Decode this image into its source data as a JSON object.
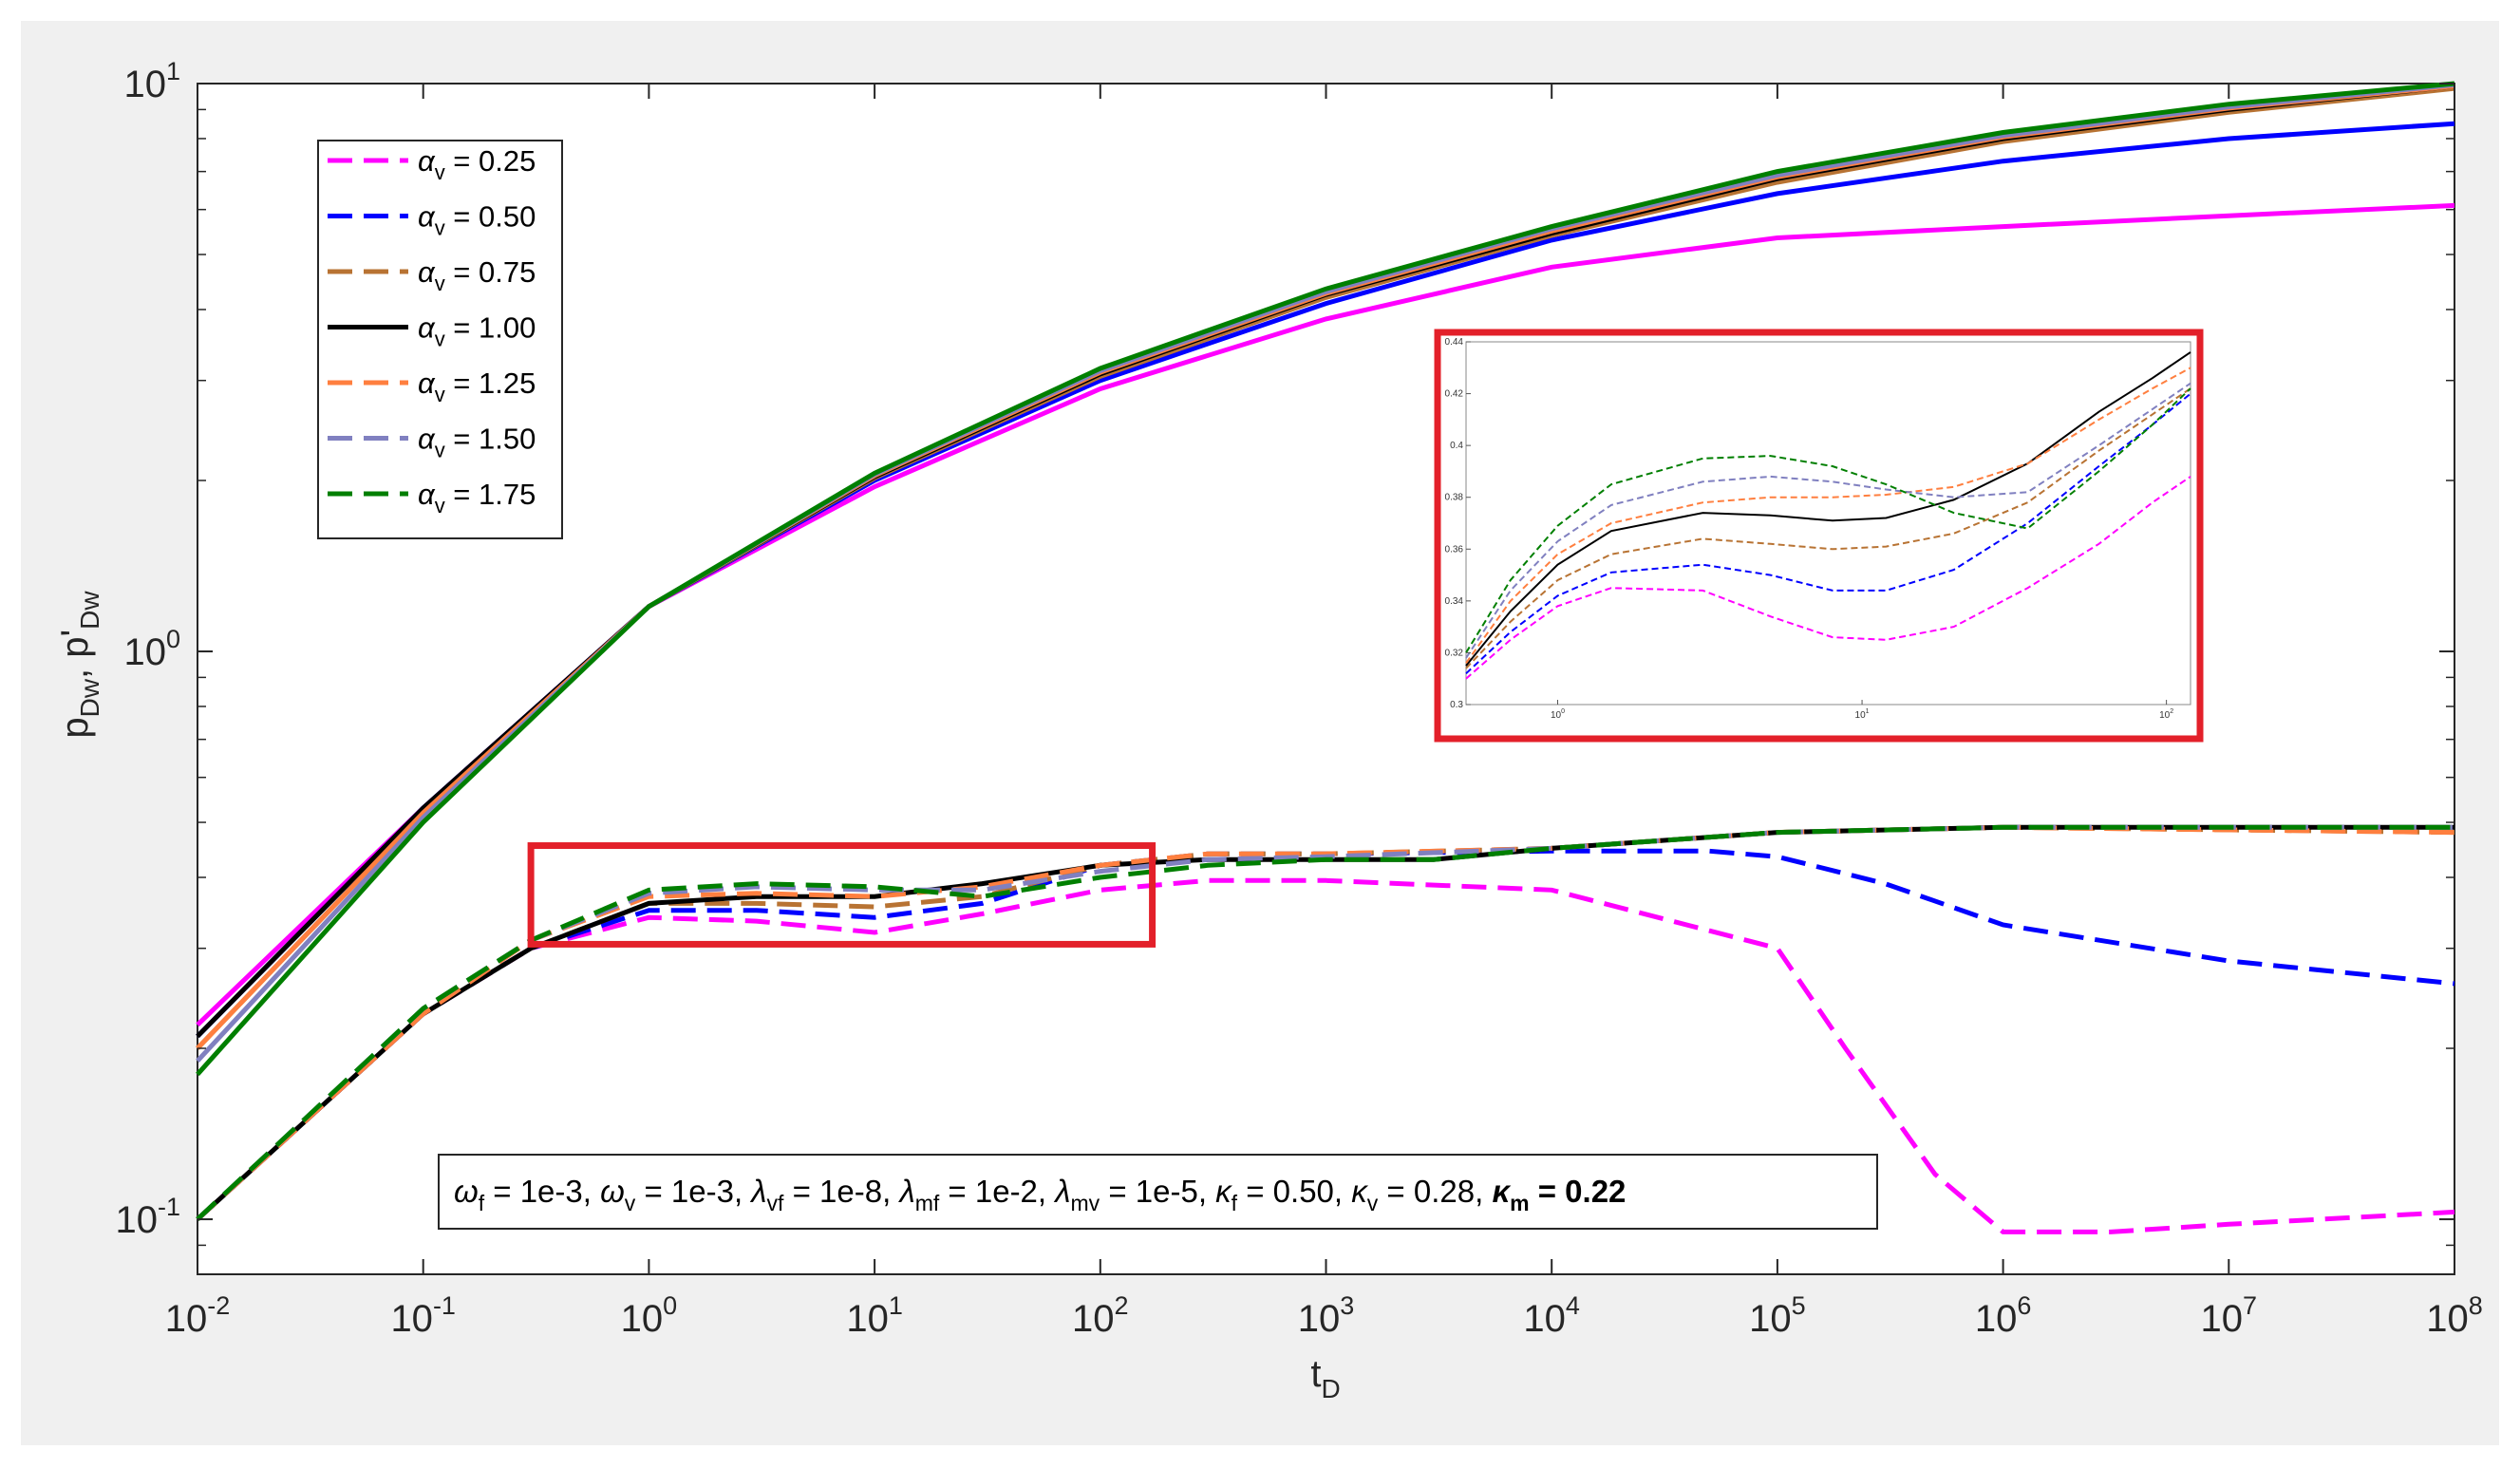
{
  "chart_data": [
    {
      "type": "line",
      "title": "",
      "x_scale": "log",
      "y_scale": "log",
      "xlim": [
        0.01,
        100000000
      ],
      "ylim": [
        0.08,
        10
      ],
      "xlabel": {
        "main": "t",
        "sub": "D"
      },
      "ylabel": {
        "p": "p",
        "p_sub": "Dw",
        "sep": ", ",
        "pp": "p'",
        "pp_sub": "Dw"
      },
      "x_ticks": [
        {
          "value": 0.01,
          "base": "10",
          "exp": "-2"
        },
        {
          "value": 0.1,
          "base": "10",
          "exp": "-1"
        },
        {
          "value": 1,
          "base": "10",
          "exp": "0"
        },
        {
          "value": 10,
          "base": "10",
          "exp": "1"
        },
        {
          "value": 100,
          "base": "10",
          "exp": "2"
        },
        {
          "value": 1000,
          "base": "10",
          "exp": "3"
        },
        {
          "value": 10000,
          "base": "10",
          "exp": "4"
        },
        {
          "value": 100000,
          "base": "10",
          "exp": "5"
        },
        {
          "value": 1000000,
          "base": "10",
          "exp": "6"
        },
        {
          "value": 10000000,
          "base": "10",
          "exp": "7"
        },
        {
          "value": 100000000,
          "base": "10",
          "exp": "8"
        }
      ],
      "y_ticks": [
        {
          "value": 0.1,
          "base": "10",
          "exp": "-1"
        },
        {
          "value": 1,
          "base": "10",
          "exp": "0"
        },
        {
          "value": 10,
          "base": "10",
          "exp": "1"
        }
      ],
      "grid": false,
      "legend_position": "top-left",
      "legend": [
        {
          "symbol": "α",
          "sub": "v",
          "text": " = 0.25",
          "color": "#ff00ff",
          "dash": "dashed"
        },
        {
          "symbol": "α",
          "sub": "v",
          "text": " = 0.50",
          "color": "#0000ff",
          "dash": "dashed"
        },
        {
          "symbol": "α",
          "sub": "v",
          "text": " = 0.75",
          "color": "#b87333",
          "dash": "dashed"
        },
        {
          "symbol": "α",
          "sub": "v",
          "text": " = 1.00",
          "color": "#000000",
          "dash": "solid"
        },
        {
          "symbol": "α",
          "sub": "v",
          "text": " = 1.25",
          "color": "#ff7f3f",
          "dash": "dashed"
        },
        {
          "symbol": "α",
          "sub": "v",
          "text": " = 1.50",
          "color": "#8080c0",
          "dash": "dashed"
        },
        {
          "symbol": "α",
          "sub": "v",
          "text": " = 1.75",
          "color": "#007f00",
          "dash": "dashed"
        }
      ],
      "series": [
        {
          "color": "#ff00ff",
          "pressure": {
            "x": [
              0.01,
              0.1,
              1,
              10,
              100,
              1000,
              10000,
              100000,
              1000000,
              10000000,
              100000000
            ],
            "y": [
              0.22,
              0.53,
              1.2,
              1.95,
              2.9,
              3.85,
              4.75,
              5.35,
              5.6,
              5.85,
              6.1
            ]
          },
          "derivative": {
            "x": [
              0.01,
              0.1,
              0.3,
              1,
              3,
              10,
              30,
              100,
              300,
              1000,
              10000,
              100000,
              200000,
              500000,
              1000000,
              3000000,
              10000000,
              100000000
            ],
            "y": [
              0.1,
              0.23,
              0.3,
              0.34,
              0.335,
              0.32,
              0.345,
              0.38,
              0.395,
              0.395,
              0.38,
              0.3,
              0.2,
              0.12,
              0.095,
              0.095,
              0.098,
              0.103
            ]
          }
        },
        {
          "color": "#0000ff",
          "pressure": {
            "x": [
              0.01,
              0.1,
              1,
              10,
              100,
              1000,
              10000,
              100000,
              1000000,
              10000000,
              100000000
            ],
            "y": [
              0.21,
              0.53,
              1.2,
              2.0,
              3.0,
              4.1,
              5.3,
              6.4,
              7.3,
              8.0,
              8.5
            ]
          },
          "derivative": {
            "x": [
              0.01,
              0.1,
              0.3,
              1,
              3,
              10,
              30,
              100,
              300,
              1000,
              10000,
              50000,
              100000,
              300000,
              1000000,
              10000000,
              100000000
            ],
            "y": [
              0.1,
              0.23,
              0.3,
              0.35,
              0.35,
              0.34,
              0.36,
              0.42,
              0.44,
              0.44,
              0.445,
              0.445,
              0.435,
              0.39,
              0.33,
              0.285,
              0.26
            ]
          }
        },
        {
          "color": "#b87333",
          "pressure": {
            "x": [
              0.01,
              0.1,
              1,
              10,
              100,
              1000,
              10000,
              100000,
              1000000,
              10000000,
              100000000
            ],
            "y": [
              0.2,
              0.52,
              1.2,
              2.02,
              3.05,
              4.2,
              5.4,
              6.7,
              7.9,
              8.9,
              9.8
            ]
          },
          "derivative": {
            "x": [
              0.01,
              0.1,
              0.3,
              1,
              3,
              10,
              30,
              100,
              300,
              1000,
              10000,
              100000,
              1000000,
              100000000
            ],
            "y": [
              0.1,
              0.23,
              0.3,
              0.36,
              0.36,
              0.355,
              0.37,
              0.42,
              0.44,
              0.44,
              0.45,
              0.48,
              0.49,
              0.48
            ]
          }
        },
        {
          "color": "#000000",
          "pressure": {
            "x": [
              0.01,
              0.1,
              1,
              10,
              100,
              1000,
              10000,
              100000,
              1000000,
              10000000,
              100000000
            ],
            "y": [
              0.21,
              0.53,
              1.2,
              2.03,
              3.08,
              4.25,
              5.45,
              6.8,
              8.0,
              9.0,
              9.9
            ]
          },
          "derivative": {
            "x": [
              0.01,
              0.1,
              0.3,
              1,
              3,
              10,
              30,
              100,
              300,
              1000,
              3000,
              10000,
              100000,
              1000000,
              100000000
            ],
            "y": [
              0.1,
              0.23,
              0.3,
              0.36,
              0.37,
              0.37,
              0.39,
              0.42,
              0.43,
              0.43,
              0.43,
              0.45,
              0.48,
              0.49,
              0.49
            ]
          }
        },
        {
          "color": "#ff7f3f",
          "pressure": {
            "x": [
              0.01,
              0.1,
              1,
              10,
              100,
              1000,
              10000,
              100000,
              1000000,
              10000000,
              100000000
            ],
            "y": [
              0.2,
              0.52,
              1.2,
              2.04,
              3.1,
              4.27,
              5.5,
              6.85,
              8.05,
              9.05,
              9.9
            ]
          },
          "derivative": {
            "x": [
              0.01,
              0.1,
              0.3,
              1,
              3,
              10,
              30,
              100,
              300,
              1000,
              10000,
              100000,
              1000000,
              100000000
            ],
            "y": [
              0.1,
              0.23,
              0.31,
              0.37,
              0.375,
              0.37,
              0.385,
              0.42,
              0.44,
              0.44,
              0.45,
              0.48,
              0.49,
              0.48
            ]
          }
        },
        {
          "color": "#8080c0",
          "pressure": {
            "x": [
              0.01,
              0.1,
              1,
              10,
              100,
              1000,
              10000,
              100000,
              1000000,
              10000000,
              100000000
            ],
            "y": [
              0.19,
              0.51,
              1.2,
              2.05,
              3.12,
              4.3,
              5.55,
              6.9,
              8.1,
              9.1,
              9.95
            ]
          },
          "derivative": {
            "x": [
              0.01,
              0.1,
              0.3,
              1,
              3,
              10,
              30,
              100,
              300,
              1000,
              10000,
              100000,
              1000000,
              100000000
            ],
            "y": [
              0.1,
              0.235,
              0.31,
              0.375,
              0.385,
              0.38,
              0.38,
              0.41,
              0.43,
              0.435,
              0.45,
              0.48,
              0.49,
              0.49
            ]
          }
        },
        {
          "color": "#007f00",
          "pressure": {
            "x": [
              0.01,
              0.1,
              1,
              10,
              100,
              1000,
              10000,
              100000,
              1000000,
              10000000,
              100000000
            ],
            "y": [
              0.18,
              0.5,
              1.2,
              2.06,
              3.15,
              4.35,
              5.6,
              7.0,
              8.2,
              9.2,
              10.0
            ]
          },
          "derivative": {
            "x": [
              0.01,
              0.1,
              0.3,
              1,
              3,
              10,
              30,
              100,
              300,
              1000,
              3000,
              10000,
              100000,
              1000000,
              100000000
            ],
            "y": [
              0.1,
              0.235,
              0.31,
              0.38,
              0.39,
              0.385,
              0.37,
              0.4,
              0.42,
              0.43,
              0.43,
              0.45,
              0.48,
              0.49,
              0.49
            ]
          }
        }
      ],
      "zoom_box": {
        "xlim": [
          0.3,
          170
        ],
        "ylim": [
          0.305,
          0.455
        ],
        "color": "#e3202a"
      },
      "annotation": {
        "parts": [
          {
            "sym": "ω",
            "sub": "f",
            "text": " = 1e-3, "
          },
          {
            "sym": "ω",
            "sub": "v",
            "text": " = 1e-3, "
          },
          {
            "sym": "λ",
            "sub": "vf",
            "text": " = 1e-8, "
          },
          {
            "sym": "λ",
            "sub": "mf",
            "text": " = 1e-2, "
          },
          {
            "sym": "λ",
            "sub": "mv",
            "text": " = 1e-5, "
          },
          {
            "sym": "κ",
            "sub": "f",
            "text": " = 0.50, "
          },
          {
            "sym": "κ",
            "sub": "v",
            "text": " = 0.28, "
          },
          {
            "sym": "κ",
            "sub": "m",
            "text": " = 0.22",
            "bold": true
          }
        ]
      }
    },
    {
      "type": "line",
      "title": "",
      "x_scale": "log",
      "xlim": [
        0.5,
        120
      ],
      "ylim": [
        0.3,
        0.44
      ],
      "grid": false,
      "x_ticks": [
        {
          "value": 1,
          "base": "10",
          "exp": "0"
        },
        {
          "value": 10,
          "base": "10",
          "exp": "1"
        },
        {
          "value": 100,
          "base": "10",
          "exp": "2"
        }
      ],
      "y_ticks": [
        "0.3",
        "0.32",
        "0.34",
        "0.36",
        "0.38",
        "0.4",
        "0.42",
        "0.44"
      ],
      "frame_color": "#e3202a",
      "series": [
        {
          "color": "#ff00ff",
          "x": [
            0.5,
            0.7,
            1,
            1.5,
            3,
            5,
            8,
            12,
            20,
            35,
            60,
            90,
            120
          ],
          "y": [
            0.31,
            0.325,
            0.338,
            0.345,
            0.344,
            0.334,
            0.326,
            0.325,
            0.33,
            0.345,
            0.362,
            0.378,
            0.388
          ]
        },
        {
          "color": "#0000ff",
          "x": [
            0.5,
            0.7,
            1,
            1.5,
            3,
            5,
            8,
            12,
            20,
            35,
            60,
            90,
            120
          ],
          "y": [
            0.312,
            0.328,
            0.342,
            0.351,
            0.354,
            0.35,
            0.344,
            0.344,
            0.352,
            0.37,
            0.392,
            0.408,
            0.42
          ]
        },
        {
          "color": "#b87333",
          "x": [
            0.5,
            0.7,
            1,
            1.5,
            3,
            5,
            8,
            12,
            20,
            35,
            60,
            90,
            120
          ],
          "y": [
            0.314,
            0.332,
            0.348,
            0.358,
            0.364,
            0.362,
            0.36,
            0.361,
            0.366,
            0.378,
            0.398,
            0.412,
            0.422
          ]
        },
        {
          "color": "#000000",
          "x": [
            0.5,
            0.7,
            1,
            1.5,
            3,
            5,
            8,
            12,
            20,
            35,
            60,
            90,
            120
          ],
          "y": [
            0.315,
            0.336,
            0.354,
            0.367,
            0.374,
            0.373,
            0.371,
            0.372,
            0.379,
            0.393,
            0.413,
            0.426,
            0.436
          ]
        },
        {
          "color": "#ff7f3f",
          "x": [
            0.5,
            0.7,
            1,
            1.5,
            3,
            5,
            8,
            12,
            20,
            35,
            60,
            90,
            120
          ],
          "y": [
            0.316,
            0.34,
            0.358,
            0.37,
            0.378,
            0.38,
            0.38,
            0.381,
            0.384,
            0.393,
            0.41,
            0.422,
            0.43
          ]
        },
        {
          "color": "#8080c0",
          "x": [
            0.5,
            0.7,
            1,
            1.5,
            3,
            5,
            8,
            12,
            20,
            35,
            60,
            90,
            120
          ],
          "y": [
            0.318,
            0.344,
            0.363,
            0.377,
            0.386,
            0.388,
            0.386,
            0.383,
            0.38,
            0.382,
            0.4,
            0.414,
            0.424
          ]
        },
        {
          "color": "#007f00",
          "x": [
            0.5,
            0.7,
            1,
            1.5,
            3,
            5,
            8,
            12,
            20,
            35,
            60,
            90,
            120
          ],
          "y": [
            0.32,
            0.348,
            0.369,
            0.385,
            0.395,
            0.396,
            0.392,
            0.385,
            0.374,
            0.368,
            0.39,
            0.408,
            0.422
          ]
        }
      ]
    }
  ]
}
